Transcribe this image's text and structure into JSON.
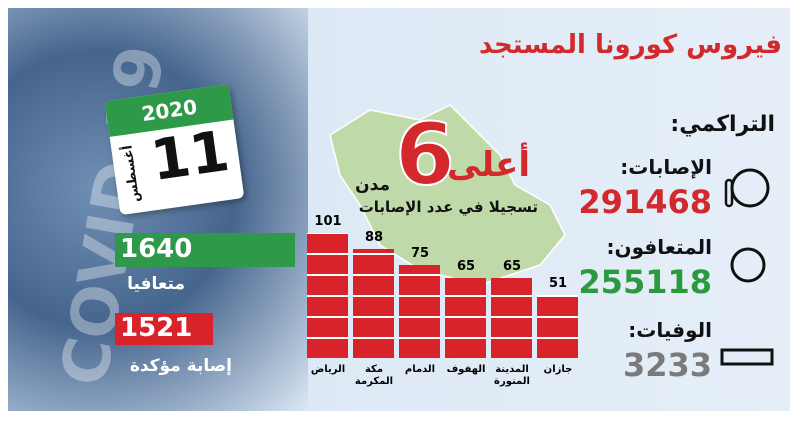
{
  "title": "فيروس كورونا المستجد",
  "watermark": "COVID-19",
  "calendar": {
    "year": "2020",
    "day": "11",
    "month": "أغسطس"
  },
  "daily": [
    {
      "value": "1640",
      "label": "متعافيا"
    },
    {
      "value": "1521",
      "label": "إصابة مؤكدة"
    }
  ],
  "headline": {
    "prefix": "أعلى",
    "number": "6",
    "suffix": "مدن",
    "subtitle": "تسجيلا في عدد الإصابات"
  },
  "cumulative": {
    "heading": "التراكمي:",
    "items": [
      {
        "label": "الإصابات:",
        "value": "291468",
        "color": "#d3282c"
      },
      {
        "label": "المتعافون:",
        "value": "255118",
        "color": "#2b9a3e"
      },
      {
        "label": "الوفيات:",
        "value": "3233",
        "color": "#7a7a7a"
      }
    ]
  },
  "chart_data": {
    "type": "bar",
    "categories": [
      "الرياض",
      "مكة المكرمة",
      "الدمام",
      "الهفوف",
      "المدينة المنورة",
      "جازان"
    ],
    "values": [
      101,
      88,
      75,
      65,
      65,
      51
    ],
    "color": "#d8232a"
  }
}
